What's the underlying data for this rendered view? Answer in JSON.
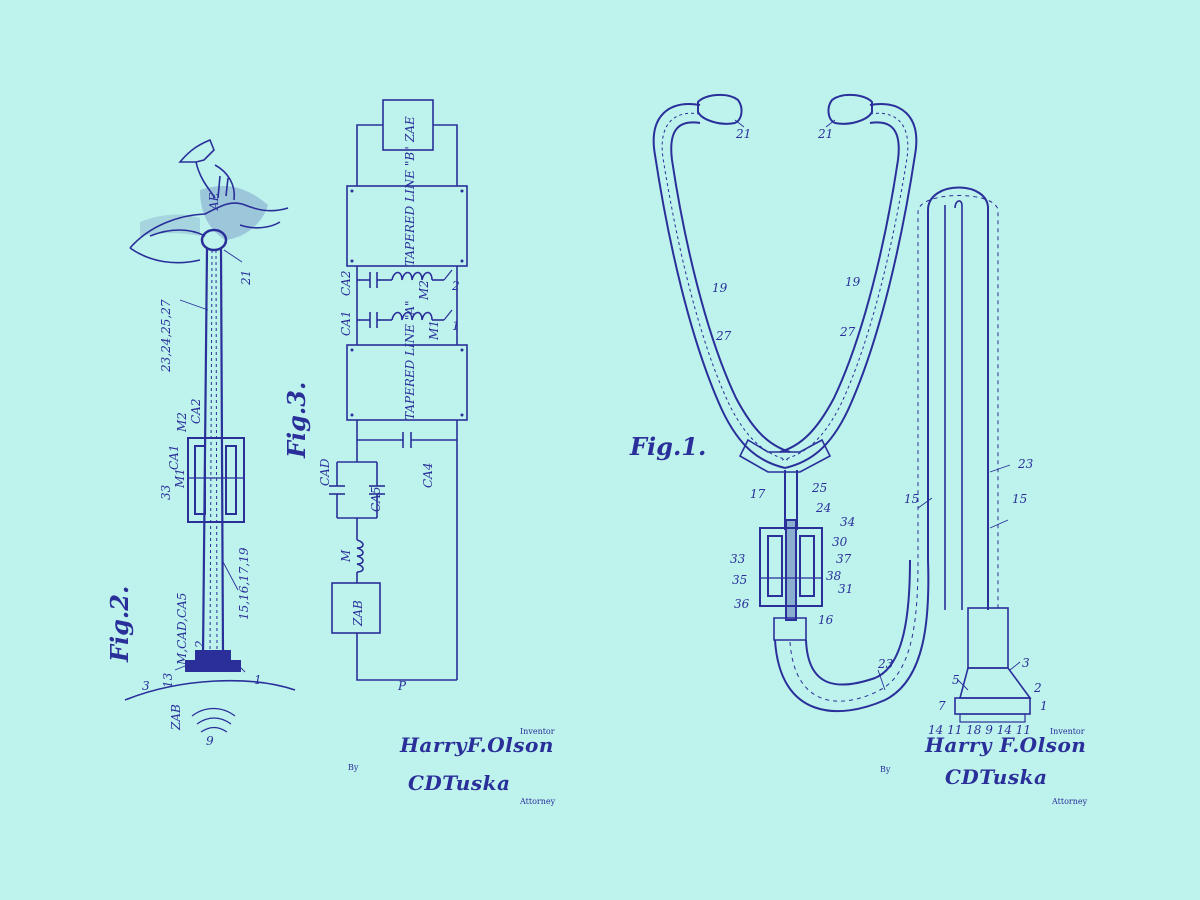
{
  "colors": {
    "background": "#bdf3ec",
    "ink": "#2a2f9a"
  },
  "fig2": {
    "caption": "Fig.2.",
    "labels": {
      "l_23_24": "23,24,25,27",
      "l_21": "21",
      "l_ca1": "CA1",
      "l_m2": "M2",
      "l_ca2": "CA2",
      "l_m1": "M1",
      "l_33": "33",
      "l_15": "15,16,17,19",
      "l_13": "13",
      "l_mcad": "M,CAD,CA5",
      "l_2": "2",
      "l_1": "1",
      "l_3": "3",
      "l_zab": "ZAB",
      "l_9": "9",
      "l_ae": "AE"
    }
  },
  "fig3": {
    "caption": "Fig.3.",
    "labels": {
      "zae": "ZAE",
      "tapered_b": "TAPERED LINE \"B\"",
      "tapered_a": "TAPERED LINE \"A\"",
      "ca2": "CA2",
      "m2": "M2",
      "ca1": "CA1",
      "m1": "M1",
      "cad": "CAD",
      "ca5": "CA5",
      "ca4": "CA4",
      "m": "M",
      "zab": "ZAB",
      "p": "P",
      "n1": "1",
      "n2": "2"
    }
  },
  "fig1": {
    "caption": "Fig.1.",
    "labels": {
      "l21a": "21",
      "l21b": "21",
      "l19a": "19",
      "l19b": "19",
      "l27a": "27",
      "l27b": "27",
      "l17": "17",
      "l25": "25",
      "l24": "24",
      "l34": "34",
      "l30": "30",
      "l37": "37",
      "l38": "38",
      "l31": "31",
      "l33": "33",
      "l35": "35",
      "l36": "36",
      "l16": "16",
      "l15a": "15",
      "l15b": "15",
      "l23a": "23",
      "l23b": "23",
      "l3": "3",
      "l5": "5",
      "l2": "2",
      "l7": "7",
      "l1": "1",
      "l_bottom": "14  11  18 9 14 11"
    }
  },
  "signatures": {
    "left": {
      "inventor_label": "Inventor",
      "inventor": "HarryF.Olson",
      "by": "By",
      "attorney_sig": "CDTuska",
      "attorney_label": "Attorney"
    },
    "right": {
      "inventor_label": "Inventor",
      "inventor": "Harry F.Olson",
      "by": "By",
      "attorney_sig": "CDTuska",
      "attorney_label": "Attorney"
    }
  }
}
